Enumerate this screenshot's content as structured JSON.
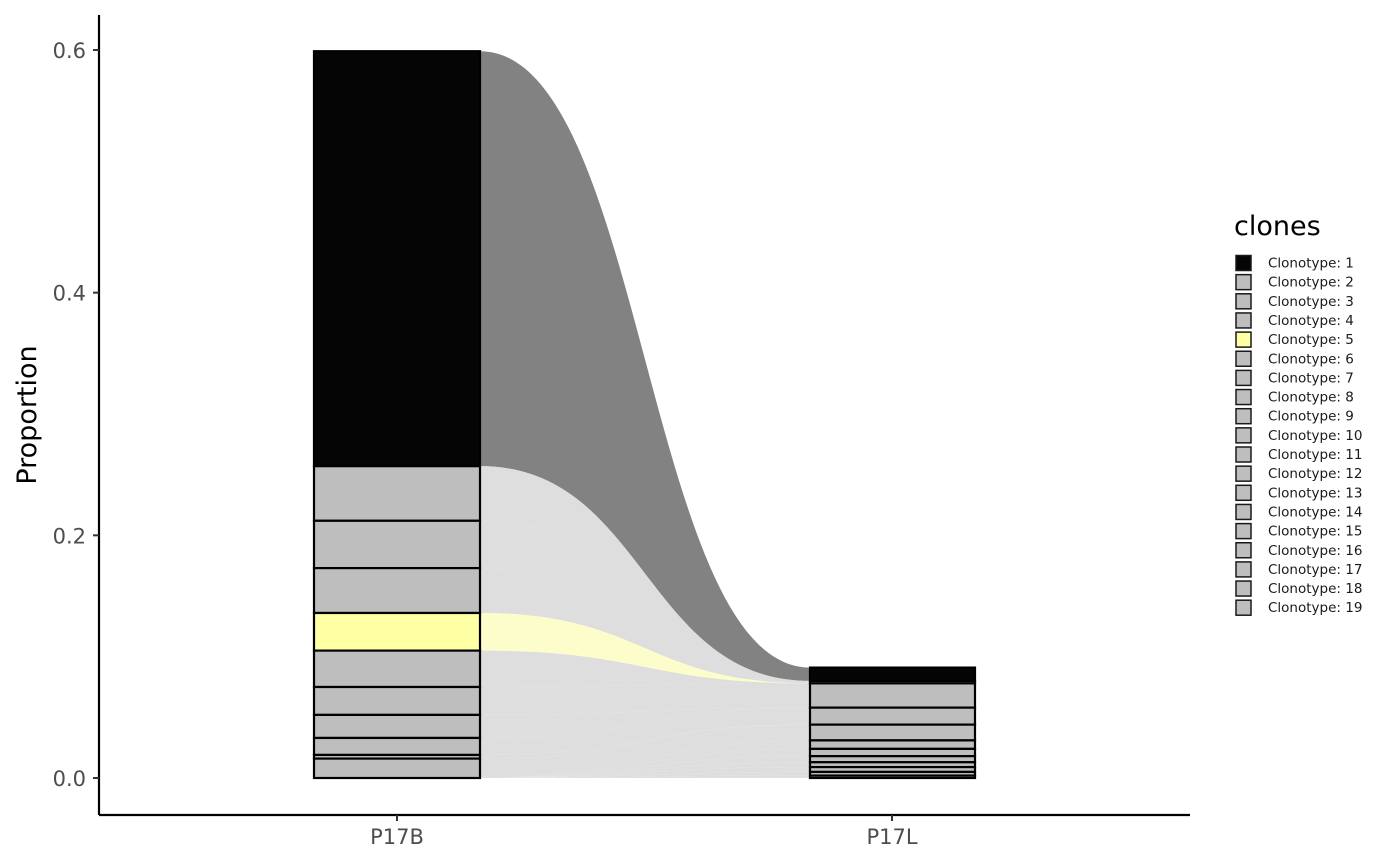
{
  "chart_data": {
    "type": "alluvial-stacked-bar",
    "categories": [
      "P17B",
      "P17L"
    ],
    "ylabel": "Proportion",
    "xlabel": "",
    "ylim": [
      0,
      0.6
    ],
    "yticks": [
      "0.0",
      "0.2",
      "0.4",
      "0.6"
    ],
    "ytick_values": [
      0,
      0.2,
      0.4,
      0.6
    ],
    "grid": false,
    "legend": {
      "title": "clones",
      "placement": "right"
    },
    "colors": {
      "highlight_1": "#050505",
      "highlight_5": "#ffffa3",
      "other": "#bebebe",
      "edge": "#000000"
    },
    "series": [
      {
        "name": "Clonotype: 1",
        "color": "#050505",
        "values": [
          0.342,
          0.011
        ]
      },
      {
        "name": "Clonotype: 2",
        "color": "#bebebe",
        "values": [
          0.045,
          0.002
        ]
      },
      {
        "name": "Clonotype: 3",
        "color": "#bebebe",
        "values": [
          0.039,
          0.0
        ]
      },
      {
        "name": "Clonotype: 4",
        "color": "#bebebe",
        "values": [
          0.037,
          0.0
        ]
      },
      {
        "name": "Clonotype: 5",
        "color": "#ffffa3",
        "values": [
          0.031,
          0.0
        ]
      },
      {
        "name": "Clonotype: 6",
        "color": "#bebebe",
        "values": [
          0.03,
          0.0
        ]
      },
      {
        "name": "Clonotype: 7",
        "color": "#bebebe",
        "values": [
          0.023,
          0.02
        ]
      },
      {
        "name": "Clonotype: 8",
        "color": "#bebebe",
        "values": [
          0.019,
          0.0
        ]
      },
      {
        "name": "Clonotype: 9",
        "color": "#bebebe",
        "values": [
          0.014,
          0.014
        ]
      },
      {
        "name": "Clonotype: 10",
        "color": "#bebebe",
        "values": [
          0.003,
          0.0
        ]
      },
      {
        "name": "Clonotype: 11",
        "color": "#bebebe",
        "values": [
          0.016,
          0.0
        ]
      },
      {
        "name": "Clonotype: 12",
        "color": "#bebebe",
        "values": [
          0.0,
          0.013
        ]
      },
      {
        "name": "Clonotype: 13",
        "color": "#bebebe",
        "values": [
          0.0,
          0.007
        ]
      },
      {
        "name": "Clonotype: 14",
        "color": "#bebebe",
        "values": [
          0.0,
          0.006
        ]
      },
      {
        "name": "Clonotype: 15",
        "color": "#bebebe",
        "values": [
          0.0,
          0.005
        ]
      },
      {
        "name": "Clonotype: 16",
        "color": "#bebebe",
        "values": [
          0.0,
          0.004
        ]
      },
      {
        "name": "Clonotype: 17",
        "color": "#bebebe",
        "values": [
          0.0,
          0.004
        ]
      },
      {
        "name": "Clonotype: 18",
        "color": "#bebebe",
        "values": [
          0.0,
          0.003
        ]
      },
      {
        "name": "Clonotype: 19",
        "color": "#bebebe",
        "values": [
          0.0,
          0.002
        ]
      }
    ]
  }
}
